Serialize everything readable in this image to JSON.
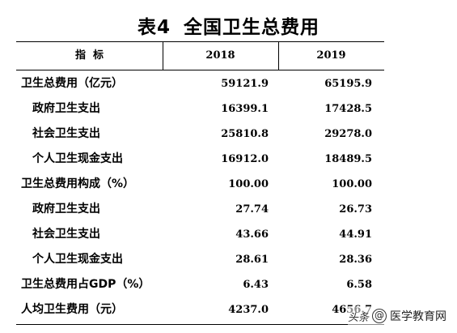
{
  "table": {
    "title_label": "表4",
    "title_text": "全国卫生总费用",
    "headers": {
      "indicator": "指  标",
      "year1": "2018",
      "year2": "2019"
    },
    "rows": [
      {
        "label": "卫生总费用（亿元）",
        "y2018": "59121.9",
        "y2019": "65195.9"
      },
      {
        "label": "政府卫生支出",
        "y2018": "16399.1",
        "y2019": "17428.5"
      },
      {
        "label": "社会卫生支出",
        "y2018": "25810.8",
        "y2019": "29278.0"
      },
      {
        "label": "个人卫生现金支出",
        "y2018": "16912.0",
        "y2019": "18489.5"
      },
      {
        "label": "卫生总费用构成（%）",
        "y2018": "100.00",
        "y2019": "100.00"
      },
      {
        "label": "政府卫生支出",
        "y2018": "27.74",
        "y2019": "26.73"
      },
      {
        "label": "社会卫生支出",
        "y2018": "43.66",
        "y2019": "44.91"
      },
      {
        "label": "个人卫生现金支出",
        "y2018": "28.61",
        "y2019": "28.36"
      },
      {
        "label": "卫生总费用占GDP（%）",
        "y2018": "6.43",
        "y2019": "6.58"
      },
      {
        "label": "人均卫生费用（元）",
        "y2018": "4237.0",
        "y2019": "4656.7"
      }
    ]
  },
  "watermark": {
    "prefix": "头条",
    "at": "@",
    "name": "医学教育网"
  }
}
